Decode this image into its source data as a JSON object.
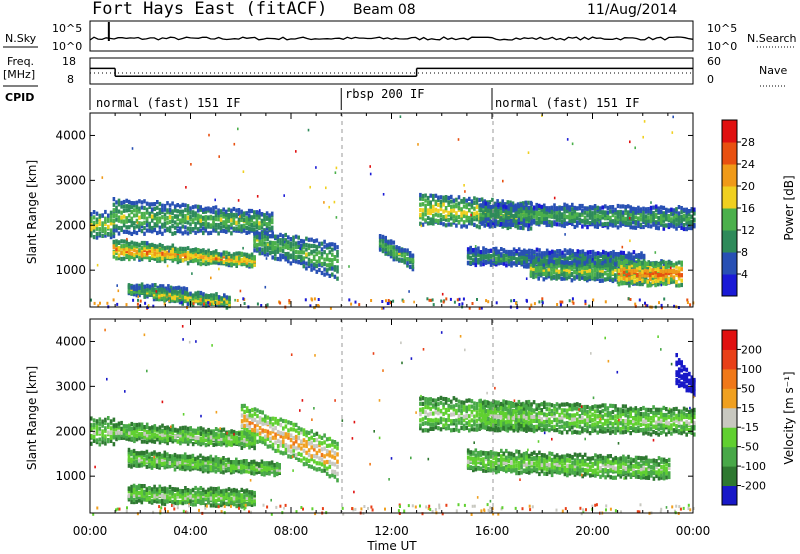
{
  "header": {
    "title": "Fort Hays East (fitACF)",
    "beam": "Beam 08",
    "date": "11/Aug/2014"
  },
  "noise_panel": {
    "left_label": "N.Sky",
    "right_label": "N.Search",
    "left_ticks": [
      "10^5",
      "10^0"
    ],
    "right_ticks": [
      "10^5",
      "10^0"
    ]
  },
  "freq_panel": {
    "left_label_line1": "Freq.",
    "left_label_line2": "[MHz]",
    "right_label": "Nave",
    "left_ticks": [
      "18",
      "8"
    ],
    "right_ticks": [
      "60",
      "0"
    ],
    "freq_segments": [
      {
        "t_start": 0.0,
        "t_end": 1.0,
        "mhz": 14.0
      },
      {
        "t_start": 1.0,
        "t_end": 13.0,
        "mhz": 11.0
      },
      {
        "t_start": 13.0,
        "t_end": 24.0,
        "mhz": 14.0
      }
    ]
  },
  "cpid_panel": {
    "label": "CPID",
    "modes": [
      {
        "text": "normal (fast) 151 IF",
        "t_start": 0.0,
        "t_end": 10.0
      },
      {
        "text": "rbsp 200 IF",
        "t_start": 10.0,
        "t_end": 16.0
      },
      {
        "text": "normal (fast) 151 IF",
        "t_start": 16.0,
        "t_end": 24.0
      }
    ]
  },
  "chart_data": [
    {
      "type": "heatmap",
      "name": "power",
      "ylabel": "Slant Range [km]",
      "yticks": [
        1000,
        2000,
        3000,
        4000
      ],
      "ylim": [
        180,
        4500
      ],
      "xlim": [
        0,
        24
      ],
      "colorbar_label": "Power [dB]",
      "colorbar_ticks": [
        "4",
        "8",
        "12",
        "16",
        "20",
        "24",
        "28"
      ],
      "colorbar_colors": [
        "#1a1ad6",
        "#2850b4",
        "#2e8a5a",
        "#4bb04b",
        "#f0d020",
        "#f09a18",
        "#e85010",
        "#e01010"
      ],
      "bands": [
        {
          "t": [
            0.0,
            0.9
          ],
          "r0": [
            2300,
            2300
          ],
          "r1": [
            1800,
            1800
          ],
          "level": 0.55
        },
        {
          "t": [
            0.9,
            6.5
          ],
          "r0": [
            1700,
            1350
          ],
          "r1": [
            1350,
            1150
          ],
          "level": 0.7
        },
        {
          "t": [
            0.9,
            7.2
          ],
          "r0": [
            2600,
            2300
          ],
          "r1": [
            1900,
            1900
          ],
          "level": 0.45
        },
        {
          "t": [
            1.5,
            3.8
          ],
          "r0": [
            700,
            650
          ],
          "r1": [
            550,
            350
          ],
          "level": 0.45
        },
        {
          "t": [
            2.5,
            5.5
          ],
          "r0": [
            600,
            450
          ],
          "r1": [
            400,
            250
          ],
          "level": 0.6
        },
        {
          "t": [
            6.5,
            9.8
          ],
          "r0": [
            1900,
            1600
          ],
          "r1": [
            1500,
            900
          ],
          "level": 0.45
        },
        {
          "t": [
            11.5,
            12.8
          ],
          "r0": [
            1800,
            1400
          ],
          "r1": [
            1500,
            1100
          ],
          "level": 0.45
        },
        {
          "t": [
            13.1,
            17.5
          ],
          "r0": [
            2700,
            2500
          ],
          "r1": [
            2100,
            2000
          ],
          "level": 0.55
        },
        {
          "t": [
            15.5,
            24.0
          ],
          "r0": [
            2500,
            2400
          ],
          "r1": [
            2100,
            2000
          ],
          "level": 0.4
        },
        {
          "t": [
            15.0,
            22.0
          ],
          "r0": [
            1500,
            1400
          ],
          "r1": [
            1200,
            1100
          ],
          "level": 0.35
        },
        {
          "t": [
            17.5,
            23.0
          ],
          "r0": [
            1250,
            1200
          ],
          "r1": [
            900,
            750
          ],
          "level": 0.5
        },
        {
          "t": [
            21.0,
            23.5
          ],
          "r0": [
            1200,
            1200
          ],
          "r1": [
            750,
            750
          ],
          "level": 0.8
        }
      ]
    },
    {
      "type": "heatmap",
      "name": "velocity",
      "xlabel": "Time UT",
      "ylabel": "Slant Range [km]",
      "yticks": [
        1000,
        2000,
        3000,
        4000
      ],
      "ylim": [
        180,
        4500
      ],
      "xlim": [
        0,
        24
      ],
      "xticks": [
        "00:00",
        "04:00",
        "08:00",
        "12:00",
        "16:00",
        "20:00",
        "00:00"
      ],
      "colorbar_label": "Velocity [m s⁻¹]",
      "colorbar_ticks": [
        "200",
        "100",
        "50",
        "15",
        "-15",
        "-50",
        "-100",
        "-200"
      ],
      "colorbar_colors": [
        "#1818c8",
        "#2e7830",
        "#48a848",
        "#60d030",
        "#c8c8c0",
        "#f0a020",
        "#f07818",
        "#e84018",
        "#e01010"
      ],
      "bands": [
        {
          "t": [
            0.0,
            0.9
          ],
          "r0": [
            2300,
            2300
          ],
          "r1": [
            1800,
            1800
          ],
          "level": 0.45
        },
        {
          "t": [
            0.9,
            6.5
          ],
          "r0": [
            2200,
            2000
          ],
          "r1": [
            1900,
            1700
          ],
          "level": 0.45
        },
        {
          "t": [
            1.5,
            7.5
          ],
          "r0": [
            1600,
            1300
          ],
          "r1": [
            1300,
            1100
          ],
          "level": 0.45
        },
        {
          "t": [
            1.5,
            6.5
          ],
          "r0": [
            800,
            700
          ],
          "r1": [
            500,
            400
          ],
          "level": 0.45
        },
        {
          "t": [
            6.0,
            9.8
          ],
          "r0": [
            2600,
            1800
          ],
          "r1": [
            2000,
            1000
          ],
          "level": 0.65
        },
        {
          "t": [
            13.1,
            17.5
          ],
          "r0": [
            2800,
            2600
          ],
          "r1": [
            2100,
            2100
          ],
          "level": 0.45
        },
        {
          "t": [
            15.5,
            24.0
          ],
          "r0": [
            2700,
            2500
          ],
          "r1": [
            2100,
            2000
          ],
          "level": 0.45
        },
        {
          "t": [
            15.0,
            23.0
          ],
          "r0": [
            1600,
            1400
          ],
          "r1": [
            1200,
            1000
          ],
          "level": 0.45
        },
        {
          "t": [
            23.3,
            24.0
          ],
          "r0": [
            3700,
            3200
          ],
          "r1": [
            3100,
            2900
          ],
          "level": 0.05
        }
      ]
    }
  ]
}
